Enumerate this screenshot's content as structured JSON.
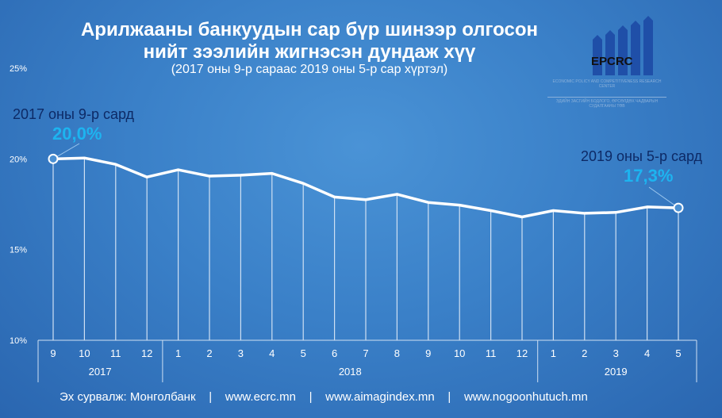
{
  "chart_data": {
    "type": "line",
    "title": "Арилжааны банкуудын сар бүр шинээр олгосон",
    "title_line2": "нийт зээлийн жигнэсэн дундаж хүү",
    "subtitle": "(2017 оны 9-р сараас 2019 оны 5-р сар хүртэл)",
    "ylim": [
      10,
      25
    ],
    "yticks": [
      "10%",
      "15%",
      "20%",
      "25%"
    ],
    "yticks_values": [
      10,
      15,
      20,
      25
    ],
    "categories": [
      "9",
      "10",
      "11",
      "12",
      "1",
      "2",
      "3",
      "4",
      "5",
      "6",
      "7",
      "8",
      "9",
      "10",
      "11",
      "12",
      "1",
      "2",
      "3",
      "4",
      "5"
    ],
    "year_groups": [
      {
        "label": "2017",
        "count": 4
      },
      {
        "label": "2018",
        "count": 12
      },
      {
        "label": "2019",
        "count": 5
      }
    ],
    "values": [
      20.0,
      20.05,
      19.7,
      19.0,
      19.4,
      19.05,
      19.1,
      19.2,
      18.65,
      17.9,
      17.75,
      18.05,
      17.6,
      17.45,
      17.15,
      16.8,
      17.15,
      17.0,
      17.05,
      17.35,
      17.3
    ],
    "annotations": [
      {
        "label": "2017 оны 9-р сард",
        "value": "20,0%"
      },
      {
        "label": "2019 оны 5-р сард",
        "value": "17,3%"
      }
    ],
    "colors": {
      "line": "#ffffff",
      "highlight": "#1db4f0",
      "annotation": "#0d2a66"
    }
  },
  "logo": {
    "text": "EPCRC",
    "en": "ECONOMIC POLICY AND COMPETITIVENESS RESEARCH CENTER",
    "mn": "ЭДИЙН ЗАСГИЙН БОДЛОГО, ӨРСӨЛДӨХ ЧАДВАРЫН СУДАЛГААНЫ ТӨВ"
  },
  "footer": "Эх сурвалж: Монголбанк    |    www.ecrc.mn    |    www.aimagindex.mn    |    www.nogoonhutuch.mn"
}
